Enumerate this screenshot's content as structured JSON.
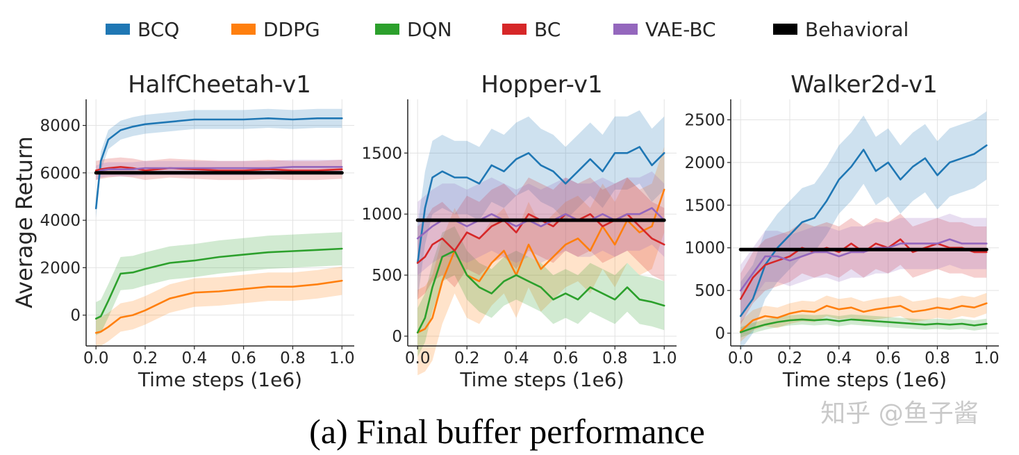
{
  "legend": [
    {
      "key": "bcq",
      "label": "BCQ",
      "color": "#1f77b4"
    },
    {
      "key": "ddpg",
      "label": "DDPG",
      "color": "#ff7f0e"
    },
    {
      "key": "dqn",
      "label": "DQN",
      "color": "#2ca02c"
    },
    {
      "key": "bc",
      "label": "BC",
      "color": "#d62728"
    },
    {
      "key": "vaebc",
      "label": "VAE-BC",
      "color": "#9467bd"
    },
    {
      "key": "behavioral",
      "label": "Behavioral",
      "color": "#000000"
    }
  ],
  "y_axis_label": "Average Return",
  "caption": "(a) Final buffer performance",
  "watermark": "知乎 @鱼子酱",
  "chart_data": [
    {
      "type": "line",
      "title": "HalfCheetah-v1",
      "xlabel": "Time steps (1e6)",
      "ylabel": "Average Return",
      "xlim": [
        -0.04,
        1.05
      ],
      "ylim": [
        -1300,
        9100
      ],
      "xticks": [
        0.0,
        0.2,
        0.4,
        0.6,
        0.8,
        1.0
      ],
      "xtick_labels": [
        "0.0",
        "0.2",
        "0.4",
        "0.6",
        "0.8",
        "1.0"
      ],
      "yticks": [
        0,
        2000,
        4000,
        6000,
        8000
      ],
      "ytick_labels": [
        "0",
        "2000",
        "4000",
        "6000",
        "8000"
      ],
      "grid": true,
      "x": [
        0.0,
        0.02,
        0.05,
        0.1,
        0.15,
        0.2,
        0.3,
        0.4,
        0.5,
        0.6,
        0.7,
        0.8,
        0.9,
        1.0
      ],
      "series": [
        {
          "name": "BCQ",
          "color": "#1f77b4",
          "values": [
            4500,
            6500,
            7400,
            7800,
            7950,
            8050,
            8150,
            8250,
            8250,
            8250,
            8300,
            8250,
            8300,
            8300
          ],
          "band": 400
        },
        {
          "name": "DDPG",
          "color": "#ff7f0e",
          "values": [
            -750,
            -700,
            -500,
            -100,
            0,
            200,
            700,
            950,
            1000,
            1100,
            1200,
            1200,
            1300,
            1450
          ],
          "band": 600
        },
        {
          "name": "DQN",
          "color": "#2ca02c",
          "values": [
            -150,
            -50,
            600,
            1750,
            1800,
            1950,
            2200,
            2300,
            2450,
            2550,
            2650,
            2700,
            2750,
            2800
          ],
          "band": 700
        },
        {
          "name": "BC",
          "color": "#d62728",
          "values": [
            6100,
            6150,
            6200,
            6250,
            6200,
            6100,
            6200,
            6150,
            6100,
            6100,
            6150,
            6100,
            6100,
            6150
          ],
          "band": 400
        },
        {
          "name": "VAE-BC",
          "color": "#9467bd",
          "values": [
            6000,
            6100,
            6150,
            6150,
            6150,
            6200,
            6200,
            6200,
            6200,
            6200,
            6200,
            6250,
            6250,
            6250
          ],
          "band": 300
        },
        {
          "name": "Behavioral",
          "color": "#000000",
          "values": [
            6000,
            6000,
            6000,
            6000,
            6000,
            6000,
            6000,
            6000,
            6000,
            6000,
            6000,
            6000,
            6000,
            6000
          ],
          "band": 0
        }
      ]
    },
    {
      "type": "line",
      "title": "Hopper-v1",
      "xlabel": "Time steps (1e6)",
      "ylabel": "",
      "xlim": [
        -0.04,
        1.05
      ],
      "ylim": [
        -80,
        1940
      ],
      "xticks": [
        0.0,
        0.2,
        0.4,
        0.6,
        0.8,
        1.0
      ],
      "xtick_labels": [
        "0.0",
        "0.2",
        "0.4",
        "0.6",
        "0.8",
        "1.0"
      ],
      "yticks": [
        0,
        500,
        1000,
        1500
      ],
      "ytick_labels": [
        "0",
        "500",
        "1000",
        "1500"
      ],
      "grid": true,
      "x": [
        0.0,
        0.03,
        0.06,
        0.1,
        0.15,
        0.2,
        0.25,
        0.3,
        0.35,
        0.4,
        0.45,
        0.5,
        0.55,
        0.6,
        0.65,
        0.7,
        0.75,
        0.8,
        0.85,
        0.9,
        0.95,
        1.0
      ],
      "series": [
        {
          "name": "BCQ",
          "color": "#1f77b4",
          "values": [
            600,
            1050,
            1300,
            1350,
            1300,
            1300,
            1250,
            1400,
            1350,
            1450,
            1500,
            1400,
            1350,
            1250,
            1350,
            1450,
            1350,
            1500,
            1500,
            1550,
            1400,
            1500
          ],
          "band": 300
        },
        {
          "name": "DDPG",
          "color": "#ff7f0e",
          "values": [
            30,
            60,
            150,
            450,
            700,
            500,
            450,
            600,
            700,
            500,
            750,
            550,
            650,
            750,
            800,
            700,
            900,
            750,
            950,
            850,
            900,
            1200
          ],
          "band": 350
        },
        {
          "name": "DQN",
          "color": "#2ca02c",
          "values": [
            30,
            150,
            400,
            650,
            700,
            500,
            400,
            350,
            450,
            500,
            450,
            400,
            300,
            350,
            300,
            400,
            350,
            300,
            400,
            300,
            280,
            250
          ],
          "band": 200
        },
        {
          "name": "BC",
          "color": "#d62728",
          "values": [
            600,
            650,
            750,
            800,
            700,
            850,
            800,
            900,
            950,
            850,
            1000,
            950,
            900,
            1000,
            950,
            1000,
            900,
            950,
            1000,
            900,
            800,
            750
          ],
          "band": 300
        },
        {
          "name": "VAE-BC",
          "color": "#9467bd",
          "values": [
            800,
            850,
            900,
            950,
            950,
            900,
            950,
            1000,
            950,
            900,
            950,
            900,
            950,
            1000,
            950,
            950,
            1000,
            950,
            1000,
            1000,
            1050,
            950
          ],
          "band": 300
        },
        {
          "name": "Behavioral",
          "color": "#000000",
          "values": [
            950,
            950,
            950,
            950,
            950,
            950,
            950,
            950,
            950,
            950,
            950,
            950,
            950,
            950,
            950,
            950,
            950,
            950,
            950,
            950,
            950,
            950
          ],
          "band": 0
        }
      ]
    },
    {
      "type": "line",
      "title": "Walker2d-v1",
      "xlabel": "Time steps (1e6)",
      "ylabel": "",
      "xlim": [
        -0.04,
        1.05
      ],
      "ylim": [
        -150,
        2740
      ],
      "xticks": [
        0.0,
        0.2,
        0.4,
        0.6,
        0.8,
        1.0
      ],
      "xtick_labels": [
        "0.0",
        "0.2",
        "0.4",
        "0.6",
        "0.8",
        "1.0"
      ],
      "yticks": [
        0,
        500,
        1000,
        1500,
        2000,
        2500
      ],
      "ytick_labels": [
        "0",
        "500",
        "1000",
        "1500",
        "2000",
        "2500"
      ],
      "grid": true,
      "x": [
        0.0,
        0.05,
        0.1,
        0.15,
        0.2,
        0.25,
        0.3,
        0.35,
        0.4,
        0.45,
        0.5,
        0.55,
        0.6,
        0.65,
        0.7,
        0.75,
        0.8,
        0.85,
        0.9,
        0.95,
        1.0
      ],
      "series": [
        {
          "name": "BCQ",
          "color": "#1f77b4",
          "values": [
            200,
            400,
            800,
            1000,
            1150,
            1300,
            1350,
            1550,
            1800,
            1950,
            2150,
            1900,
            2000,
            1800,
            1950,
            2050,
            1850,
            2000,
            2050,
            2100,
            2200
          ],
          "band": 400
        },
        {
          "name": "DDPG",
          "color": "#ff7f0e",
          "values": [
            20,
            150,
            200,
            180,
            230,
            260,
            250,
            320,
            280,
            300,
            250,
            280,
            300,
            320,
            250,
            270,
            300,
            280,
            320,
            300,
            350
          ],
          "band": 120
        },
        {
          "name": "DQN",
          "color": "#2ca02c",
          "values": [
            10,
            60,
            100,
            130,
            150,
            160,
            150,
            160,
            140,
            160,
            150,
            140,
            130,
            120,
            110,
            100,
            110,
            100,
            110,
            90,
            110
          ],
          "band": 60
        },
        {
          "name": "BC",
          "color": "#d62728",
          "values": [
            400,
            650,
            800,
            850,
            900,
            1000,
            950,
            1000,
            950,
            1050,
            950,
            1050,
            1000,
            1100,
            950,
            1000,
            1050,
            1000,
            1000,
            950,
            950
          ],
          "band": 300
        },
        {
          "name": "VAE-BC",
          "color": "#9467bd",
          "values": [
            500,
            700,
            900,
            900,
            850,
            900,
            950,
            950,
            900,
            950,
            950,
            1000,
            1000,
            1050,
            1050,
            1050,
            1050,
            1100,
            1050,
            1050,
            1050
          ],
          "band": 300
        },
        {
          "name": "Behavioral",
          "color": "#000000",
          "values": [
            980,
            980,
            980,
            980,
            980,
            980,
            980,
            980,
            980,
            980,
            980,
            980,
            980,
            980,
            980,
            980,
            980,
            980,
            980,
            980,
            980
          ],
          "band": 0
        }
      ]
    }
  ]
}
